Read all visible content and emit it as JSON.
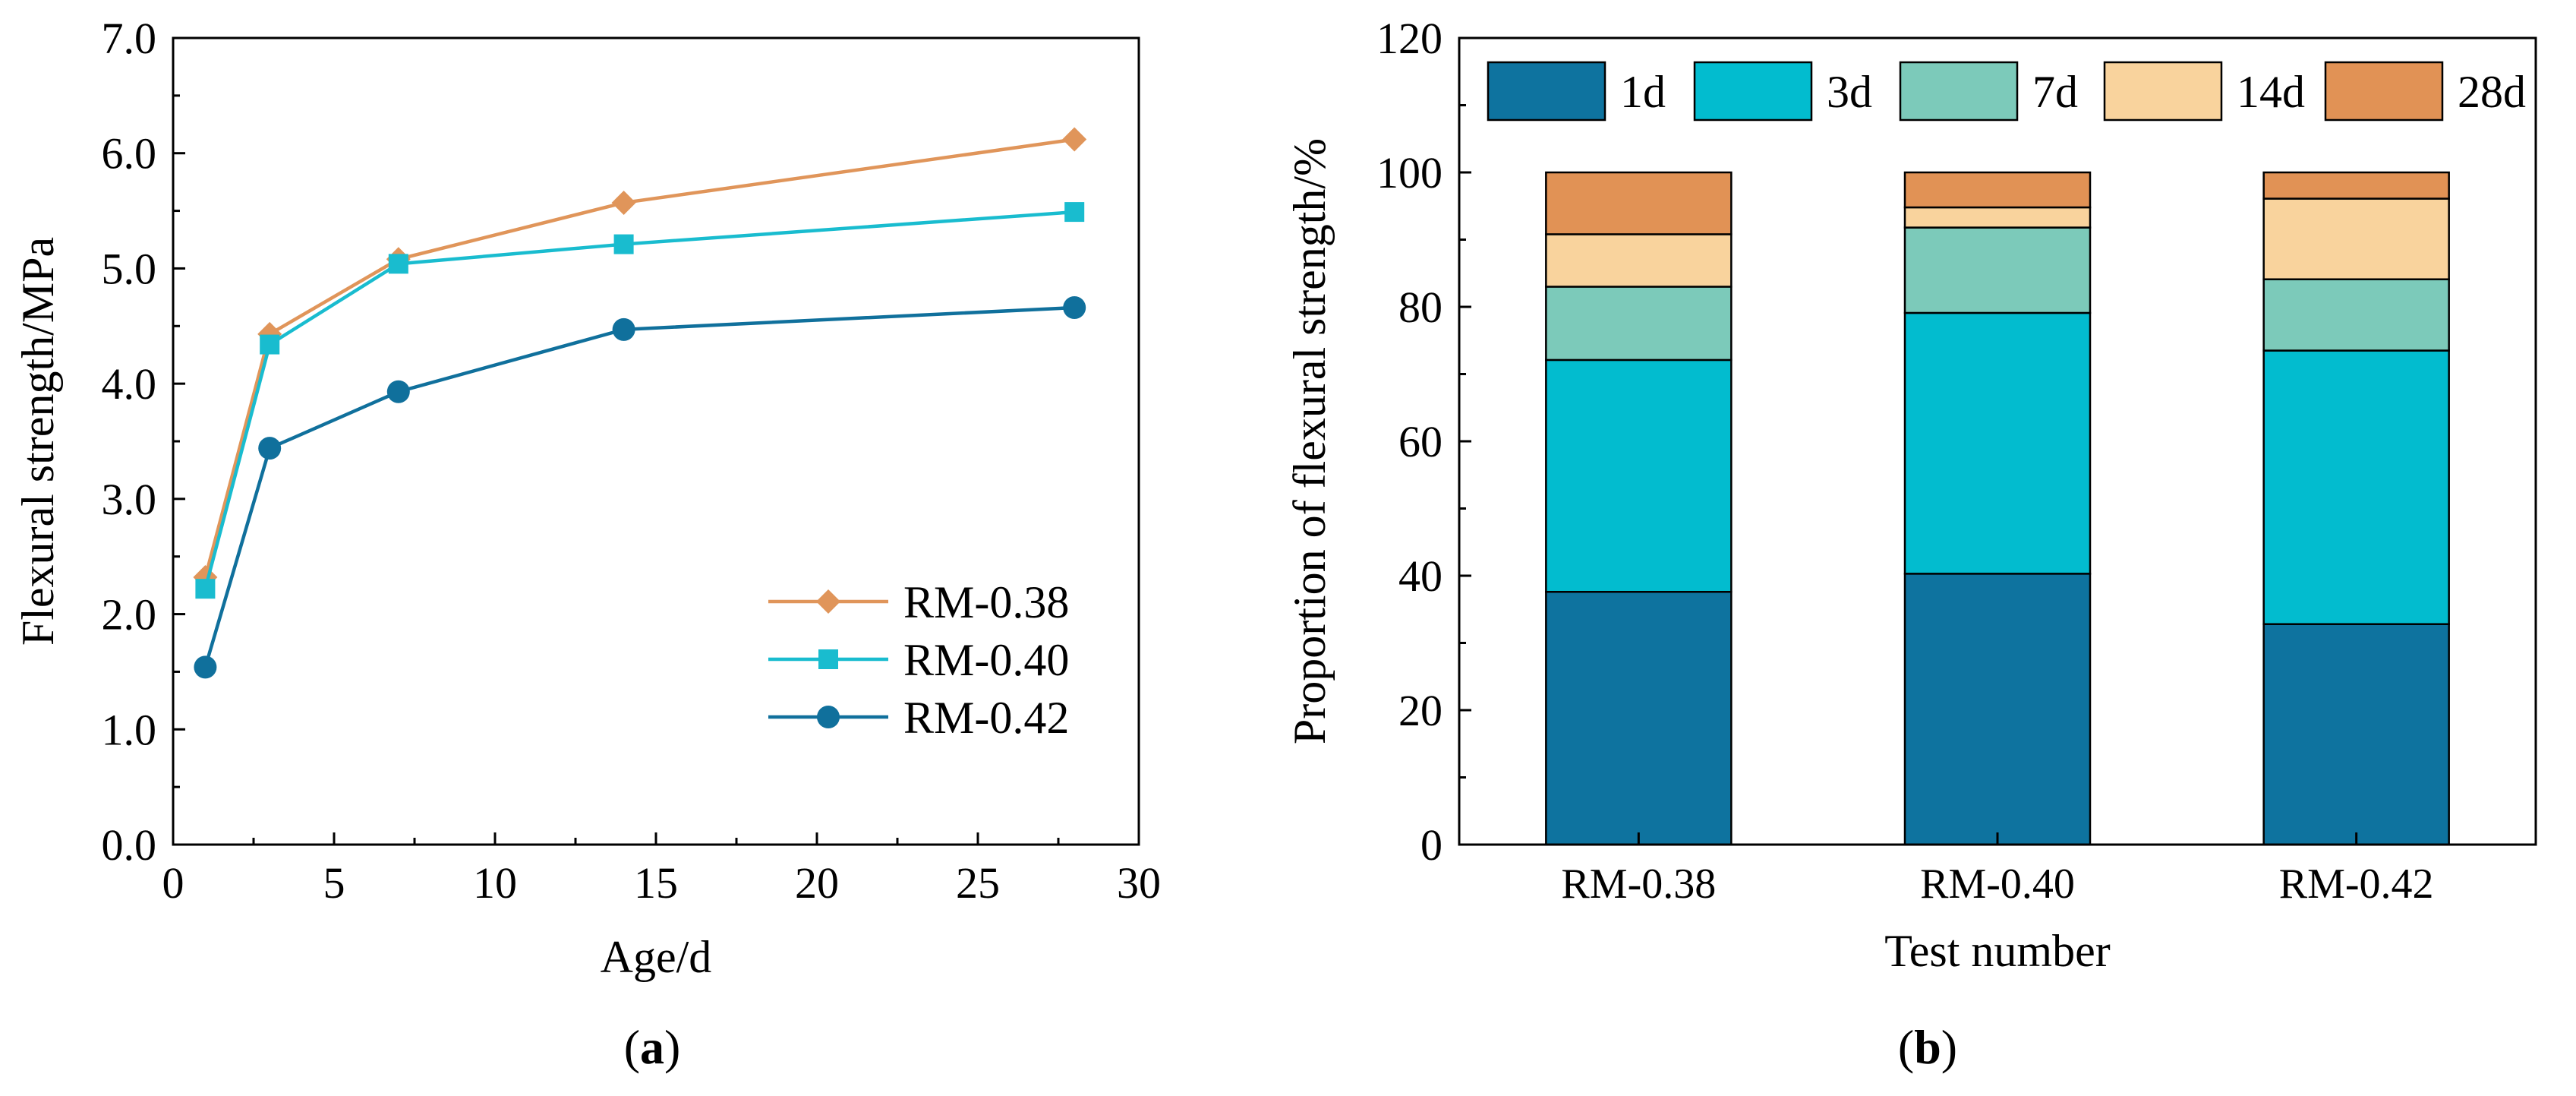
{
  "chart_data": [
    {
      "type": "line",
      "panel_label": "a",
      "xlabel": "Age/d",
      "ylabel": "Flexural strength/MPa",
      "xlim": [
        0,
        30
      ],
      "ylim": [
        0,
        7
      ],
      "xticks": [
        "0",
        "5",
        "10",
        "15",
        "20",
        "25",
        "30"
      ],
      "yticks": [
        "0.0",
        "1.0",
        "2.0",
        "3.0",
        "4.0",
        "5.0",
        "6.0",
        "7.0"
      ],
      "grid": false,
      "legend_position": "bottom-right",
      "x": [
        1,
        3,
        7,
        14,
        28
      ],
      "series": [
        {
          "name": "RM-0.38",
          "color": "#E0955A",
          "marker": "diamond",
          "values": [
            2.32,
            4.43,
            5.08,
            5.57,
            6.12
          ]
        },
        {
          "name": "RM-0.40",
          "color": "#19BCCF",
          "marker": "square",
          "values": [
            2.22,
            4.34,
            5.04,
            5.21,
            5.49
          ]
        },
        {
          "name": "RM-0.42",
          "color": "#10709C",
          "marker": "circle",
          "values": [
            1.54,
            3.44,
            3.93,
            4.47,
            4.66
          ]
        }
      ]
    },
    {
      "type": "bar",
      "stacked": true,
      "panel_label": "b",
      "xlabel": "Test number",
      "ylabel": "Proportion of flexural strength/%",
      "ylim": [
        0,
        120
      ],
      "yticks": [
        "0",
        "20",
        "40",
        "60",
        "80",
        "100",
        "120"
      ],
      "grid": false,
      "legend_position": "top",
      "categories": [
        "RM-0.38",
        "RM-0.40",
        "RM-0.42"
      ],
      "series": [
        {
          "name": "1d",
          "color": "#0E739F",
          "values": [
            37.6,
            40.3,
            32.8
          ]
        },
        {
          "name": "3d",
          "color": "#02BCCF",
          "values": [
            34.5,
            38.8,
            40.7
          ]
        },
        {
          "name": "7d",
          "color": "#7CCABA",
          "values": [
            10.9,
            12.7,
            10.6
          ]
        },
        {
          "name": "14d",
          "color": "#F9D39D",
          "values": [
            7.8,
            3.0,
            12.0
          ]
        },
        {
          "name": "28d",
          "color": "#E19255",
          "values": [
            9.2,
            5.2,
            3.9
          ]
        }
      ]
    }
  ]
}
